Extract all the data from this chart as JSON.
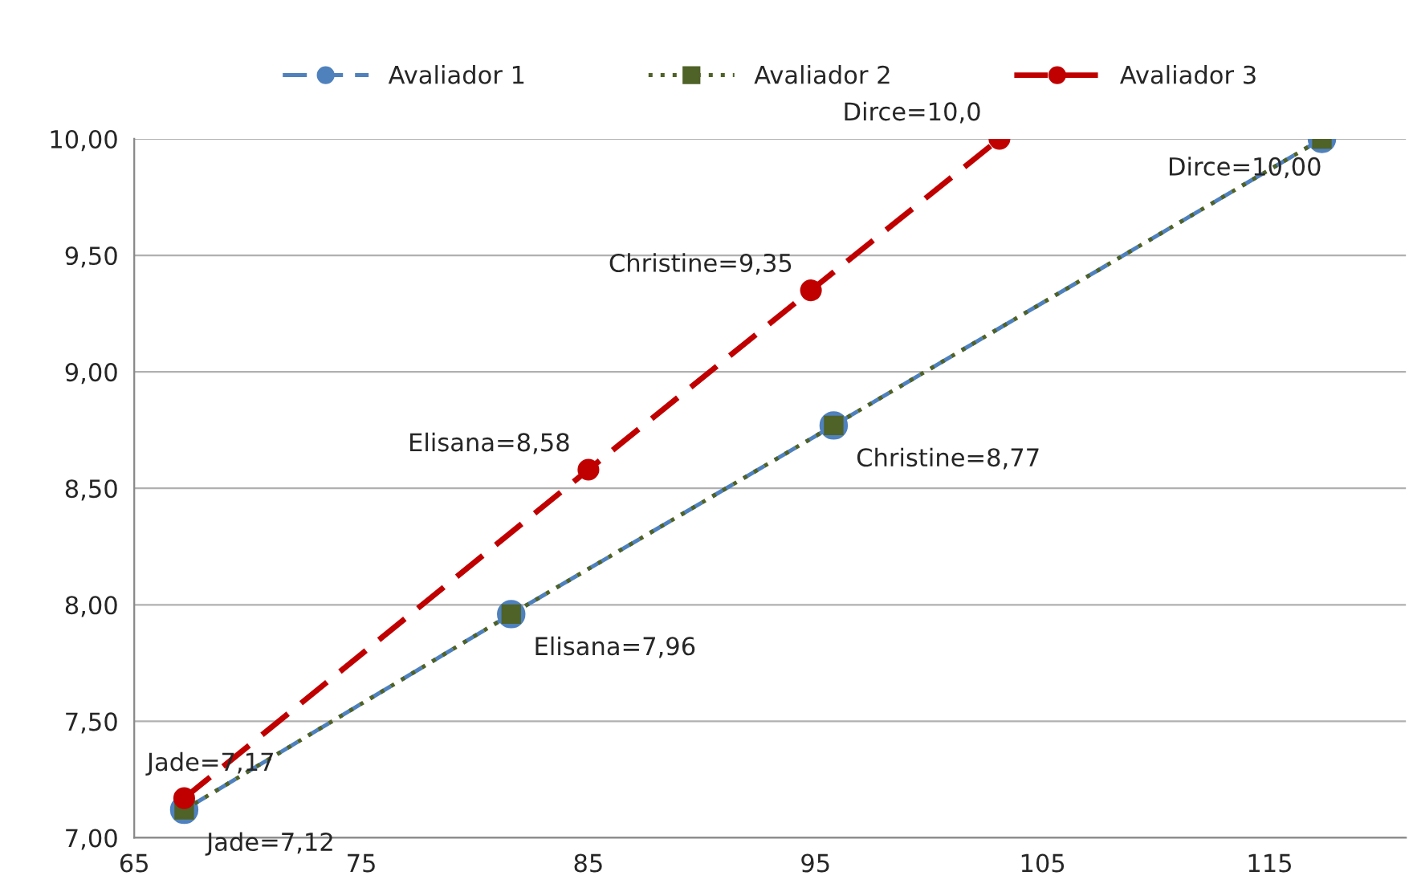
{
  "chart_data": {
    "type": "line",
    "xlim": [
      65,
      121
    ],
    "xticks": [
      65,
      75,
      85,
      95,
      105,
      115
    ],
    "ylim": [
      7,
      10
    ],
    "yticks": [
      {
        "value": 7,
        "label": "7,00"
      },
      {
        "value": 7.5,
        "label": "7,50"
      },
      {
        "value": 8,
        "label": "8,00"
      },
      {
        "value": 8.5,
        "label": "8,50"
      },
      {
        "value": 9,
        "label": "9,00"
      },
      {
        "value": 9.5,
        "label": "9,50"
      },
      {
        "value": 10,
        "label": "10,00"
      }
    ],
    "grid": "y",
    "legend": "top",
    "series": [
      {
        "name": "Avaliador 1",
        "color": "#4f81bd",
        "marker": "circle",
        "line_style": "dashed",
        "x": [
          67.2,
          81.6,
          95.8,
          117.3
        ],
        "values": [
          7.12,
          7.96,
          8.77,
          10.0
        ]
      },
      {
        "name": "Avaliador 2",
        "color": "#4f6228",
        "marker": "square",
        "line_style": "dotted",
        "x": [
          67.2,
          81.6,
          95.8,
          117.3
        ],
        "values": [
          7.12,
          7.96,
          8.77,
          10.0
        ]
      },
      {
        "name": "Avaliador 3",
        "color": "#c00000",
        "marker": "circle",
        "line_style": "dashed",
        "x": [
          67.2,
          85.0,
          94.8,
          103.1
        ],
        "values": [
          7.17,
          8.58,
          9.35,
          10.0
        ]
      }
    ],
    "annotations": [
      {
        "text": "Jade=7,12",
        "x": 67.2,
        "y": 7.12
      },
      {
        "text": "Elisana=7,96",
        "x": 81.6,
        "y": 7.96
      },
      {
        "text": "Christine=8,77",
        "x": 95.8,
        "y": 8.77
      },
      {
        "text": "Dirce=10,00",
        "x": 117.3,
        "y": 10.0
      },
      {
        "text": "Jade=7,17",
        "x": 67.2,
        "y": 7.17
      },
      {
        "text": "Elisana=8,58",
        "x": 85.0,
        "y": 8.58
      },
      {
        "text": "Christine=9,35",
        "x": 94.8,
        "y": 9.35
      },
      {
        "text": "Dirce=10,0",
        "x": 103.1,
        "y": 10.0
      }
    ]
  }
}
